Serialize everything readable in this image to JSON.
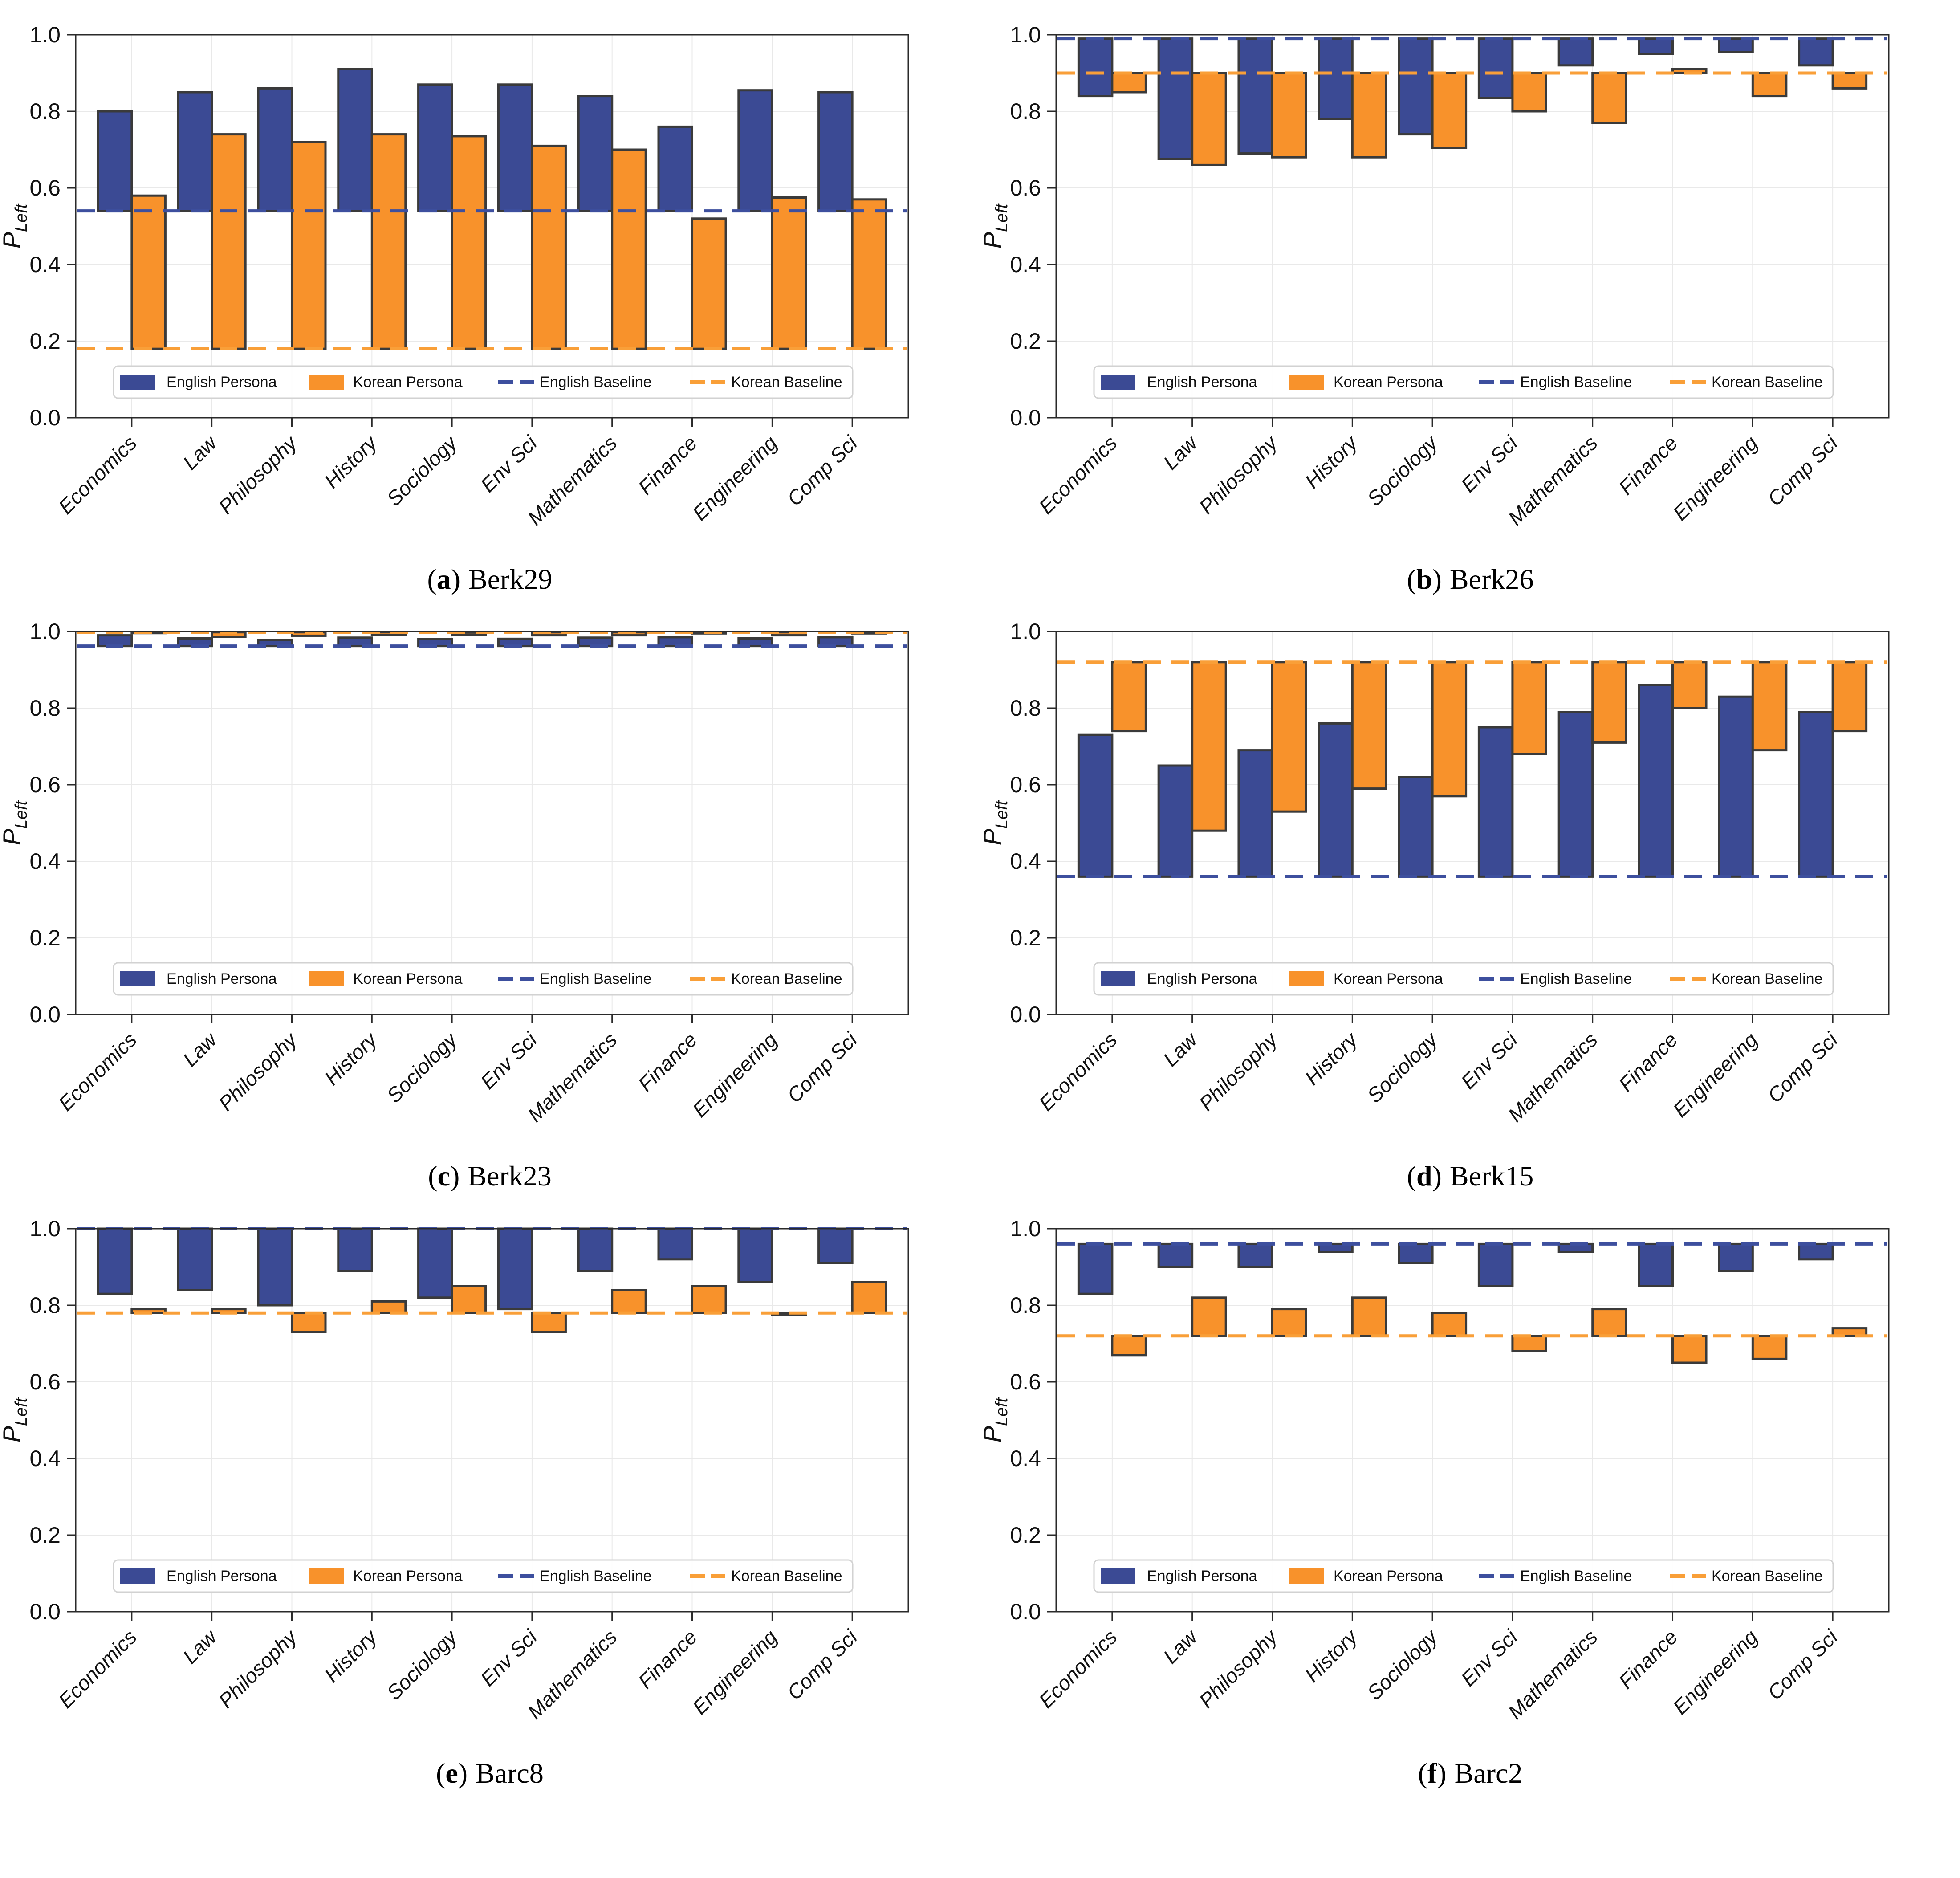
{
  "figure": {
    "caption_open": "(",
    "caption_close": ")",
    "ylabel": {
      "main": "P",
      "sub": "Left"
    },
    "ytick_labels": [
      "0.0",
      "0.2",
      "0.4",
      "0.6",
      "0.8",
      "1.0"
    ],
    "colors": {
      "english_bar": "#3B4A94",
      "korean_bar": "#F8922B",
      "english_baseline": "#3D4F9E",
      "korean_baseline": "#F99F38",
      "bar_edge": "#3A3A3A",
      "grid": "#E9E9E9",
      "spine": "#2A2A2A",
      "legend_border": "#D2D2D2"
    },
    "legend": {
      "english_persona": "English Persona",
      "korean_persona": "Korean Persona",
      "english_baseline": "English Baseline",
      "korean_baseline": "Korean Baseline"
    }
  },
  "chart_data": {
    "type": "bar",
    "ylabel": "P_Left",
    "ylim": [
      0.0,
      1.0
    ],
    "grid": true,
    "legend_position": "lower center",
    "note": "Bars are drawn from the matching language baseline to the value",
    "categories": [
      "Economics",
      "Law",
      "Philosophy",
      "History",
      "Sociology",
      "Env Sci",
      "Mathematics",
      "Finance",
      "Engineering",
      "Comp Sci"
    ],
    "series_names": [
      "English Persona",
      "Korean Persona"
    ],
    "panels": [
      {
        "id": "a",
        "caption_letter": "a",
        "caption_label": "Berk29",
        "english_persona": {
          "baseline": 0.54,
          "values": [
            0.8,
            0.85,
            0.86,
            0.91,
            0.87,
            0.87,
            0.84,
            0.76,
            0.855,
            0.85
          ]
        },
        "korean_persona": {
          "baseline": 0.18,
          "values": [
            0.58,
            0.74,
            0.72,
            0.74,
            0.735,
            0.71,
            0.7,
            0.52,
            0.575,
            0.57
          ]
        }
      },
      {
        "id": "b",
        "caption_letter": "b",
        "caption_label": "Berk26",
        "english_persona": {
          "baseline": 0.99,
          "values": [
            0.84,
            0.675,
            0.69,
            0.78,
            0.74,
            0.835,
            0.92,
            0.95,
            0.955,
            0.92
          ]
        },
        "korean_persona": {
          "baseline": 0.9,
          "values": [
            0.85,
            0.66,
            0.68,
            0.68,
            0.705,
            0.8,
            0.77,
            0.91,
            0.84,
            0.86
          ]
        }
      },
      {
        "id": "c",
        "caption_letter": "c",
        "caption_label": "Berk23",
        "english_persona": {
          "baseline": 0.962,
          "values": [
            0.99,
            0.982,
            0.978,
            0.984,
            0.98,
            0.981,
            0.984,
            0.985,
            0.982,
            0.985
          ]
        },
        "korean_persona": {
          "baseline": 0.998,
          "values": [
            0.997,
            0.986,
            0.989,
            0.991,
            0.992,
            0.99,
            0.99,
            0.995,
            0.99,
            0.995
          ]
        }
      },
      {
        "id": "d",
        "caption_letter": "d",
        "caption_label": "Berk15",
        "english_persona": {
          "baseline": 0.36,
          "values": [
            0.73,
            0.65,
            0.69,
            0.76,
            0.62,
            0.75,
            0.79,
            0.86,
            0.83,
            0.79
          ]
        },
        "korean_persona": {
          "baseline": 0.92,
          "values": [
            0.74,
            0.48,
            0.53,
            0.59,
            0.57,
            0.68,
            0.71,
            0.8,
            0.69,
            0.74
          ]
        }
      },
      {
        "id": "e",
        "caption_letter": "e",
        "caption_label": "Barc8",
        "english_persona": {
          "baseline": 1.0,
          "values": [
            0.83,
            0.84,
            0.8,
            0.89,
            0.82,
            0.79,
            0.89,
            0.92,
            0.86,
            0.91
          ]
        },
        "korean_persona": {
          "baseline": 0.78,
          "values": [
            0.79,
            0.79,
            0.73,
            0.81,
            0.85,
            0.73,
            0.84,
            0.85,
            0.775,
            0.86
          ]
        }
      },
      {
        "id": "f",
        "caption_letter": "f",
        "caption_label": "Barc2",
        "english_persona": {
          "baseline": 0.96,
          "values": [
            0.83,
            0.9,
            0.9,
            0.94,
            0.91,
            0.85,
            0.94,
            0.85,
            0.89,
            0.92
          ]
        },
        "korean_persona": {
          "baseline": 0.72,
          "values": [
            0.67,
            0.82,
            0.79,
            0.82,
            0.78,
            0.68,
            0.79,
            0.65,
            0.66,
            0.74
          ]
        }
      }
    ]
  }
}
